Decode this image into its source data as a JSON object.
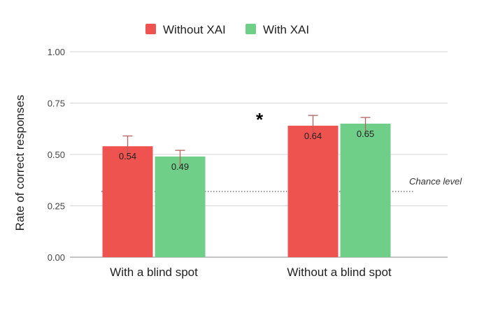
{
  "chart_data": {
    "type": "bar",
    "categories": [
      "With a blind spot",
      "Without a blind spot"
    ],
    "series": [
      {
        "name": "Without XAI",
        "color": "#ee5350",
        "values": [
          0.54,
          0.64
        ],
        "error_upper": [
          0.59,
          0.69
        ],
        "labels": [
          "0.54",
          "0.64"
        ]
      },
      {
        "name": "With XAI",
        "color": "#6fcf88",
        "values": [
          0.49,
          0.65
        ],
        "error_upper": [
          0.52,
          0.68
        ],
        "labels": [
          "0.49",
          "0.65"
        ]
      }
    ],
    "ylabel": "Rate of correct responses",
    "xlabel": "",
    "ylim": [
      0,
      1
    ],
    "yticks": [
      "0.00",
      "0.25",
      "0.50",
      "0.75",
      "1.00"
    ],
    "grid": true,
    "legend_position": "top-center",
    "reference_line": {
      "value": 0.33,
      "label": "Chance level",
      "style": "dotted"
    },
    "annotation": {
      "text": "*",
      "between": [
        "Without a blind spot",
        "With a blind spot"
      ]
    },
    "error_bar_color": "#b5615d"
  }
}
